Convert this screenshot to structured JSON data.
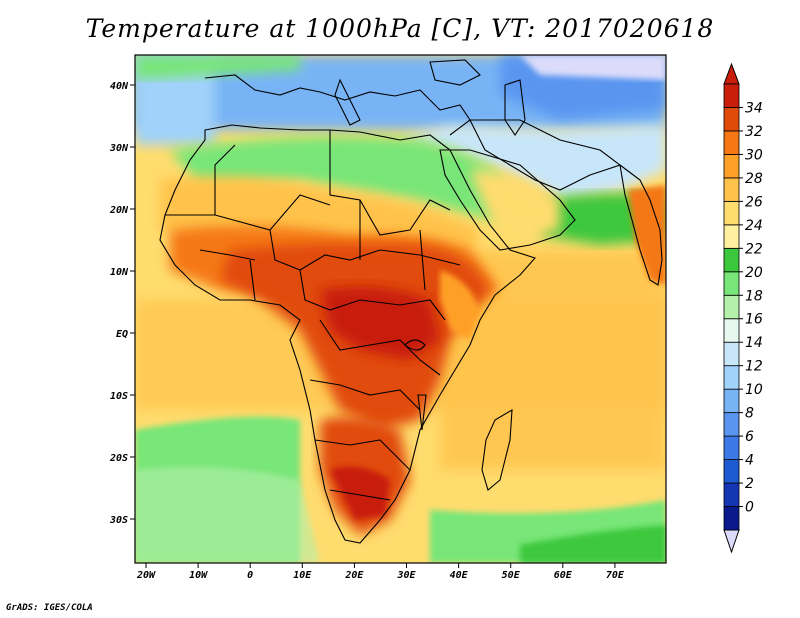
{
  "title": "Temperature at 1000hPa [C], VT: 2017020618",
  "credit": "GrADS: IGES/COLA",
  "map": {
    "lon_ticks": [
      "20W",
      "10W",
      "0",
      "10E",
      "20E",
      "30E",
      "40E",
      "50E",
      "60E",
      "70E"
    ],
    "lat_ticks": [
      "40N",
      "30N",
      "20N",
      "10N",
      "EQ",
      "10S",
      "20S",
      "30S"
    ]
  },
  "colorbar": {
    "levels": [
      "0",
      "2",
      "4",
      "6",
      "8",
      "10",
      "12",
      "14",
      "16",
      "18",
      "20",
      "22",
      "24",
      "26",
      "28",
      "30",
      "32",
      "34"
    ],
    "colors": [
      "#0a1a8c",
      "#1436b4",
      "#1e5ad2",
      "#3c78e6",
      "#5a96f0",
      "#78b4f5",
      "#a0d2fa",
      "#c8e6fa",
      "#e6f8f0",
      "#b4f0aa",
      "#78e678",
      "#3cc83c",
      "#fff0a0",
      "#ffdc6e",
      "#ffc34b",
      "#ffa028",
      "#f57814",
      "#e14b0a",
      "#c81e0a"
    ],
    "under_color": "#dcdcfa",
    "over_color": "#c81e0a"
  }
}
